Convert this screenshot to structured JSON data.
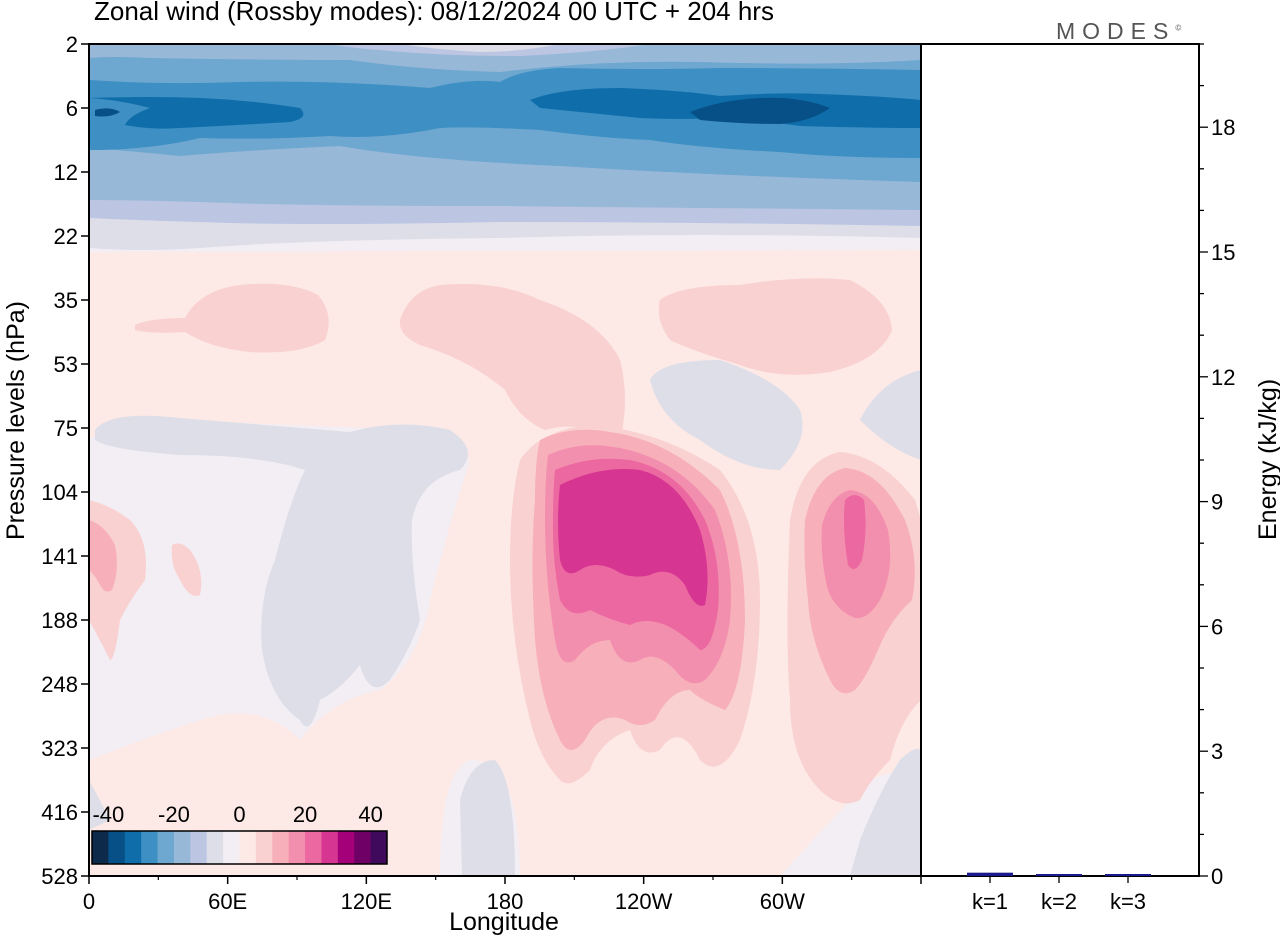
{
  "title": "Zonal wind (Rossby modes):  08/12/2024  00 UTC  + 204 hrs",
  "logo": "MODES",
  "logo_mark": "©",
  "chart_data": [
    {
      "type": "heatmap",
      "title": "Zonal wind (Rossby modes):  08/12/2024  00 UTC  + 204 hrs",
      "xlabel": "Longitude",
      "ylabel": "Pressure levels (hPa)",
      "x_ticks": [
        "0",
        "60E",
        "120E",
        "180",
        "120W",
        "60W"
      ],
      "y_ticks": [
        "2",
        "6",
        "12",
        "22",
        "35",
        "53",
        "75",
        "104",
        "141",
        "188",
        "248",
        "323",
        "416",
        "528"
      ],
      "colorbar": {
        "tick_labels": [
          "-40",
          "-20",
          "0",
          "20",
          "40"
        ],
        "levels": [
          -40,
          -35,
          -30,
          -25,
          -20,
          -15,
          -10,
          -5,
          0,
          5,
          10,
          15,
          20,
          25,
          30,
          35,
          40
        ],
        "colors": [
          "#0d2a4a",
          "#074f87",
          "#0f6eaa",
          "#3d8fc4",
          "#6ea7cf",
          "#98b8d8",
          "#bcc6e2",
          "#dedee9",
          "#f2eef4",
          "#fde9e6",
          "#f9d1d1",
          "#f7b0b9",
          "#f38fae",
          "#ec68a0",
          "#d63592",
          "#a3007a",
          "#6e0066",
          "#3f0a5c"
        ]
      },
      "features": [
        {
          "region": "upper levels (2–12 hPa), all longitudes",
          "value": -30
        },
        {
          "region": "around 20–25 hPa",
          "value": 0
        },
        {
          "region": "130W–100W, 104–188 hPa",
          "value": 30
        },
        {
          "region": "approx. 20W, 141 hPa",
          "value": 25
        },
        {
          "region": "60E–120E, 75–300 hPa",
          "value": -5
        }
      ]
    },
    {
      "type": "bar",
      "categories": [
        "k=1",
        "k=2",
        "k=3"
      ],
      "values": [
        0.08,
        0.02,
        0.01
      ],
      "ylabel": "Energy (kJ/kg)",
      "ylim": [
        0,
        20
      ],
      "y_ticks": [
        0,
        3,
        6,
        9,
        12,
        15,
        18
      ],
      "bar_colors": [
        "#1a1a8c",
        "#1a1a8c",
        "#1a1a8c"
      ]
    }
  ]
}
